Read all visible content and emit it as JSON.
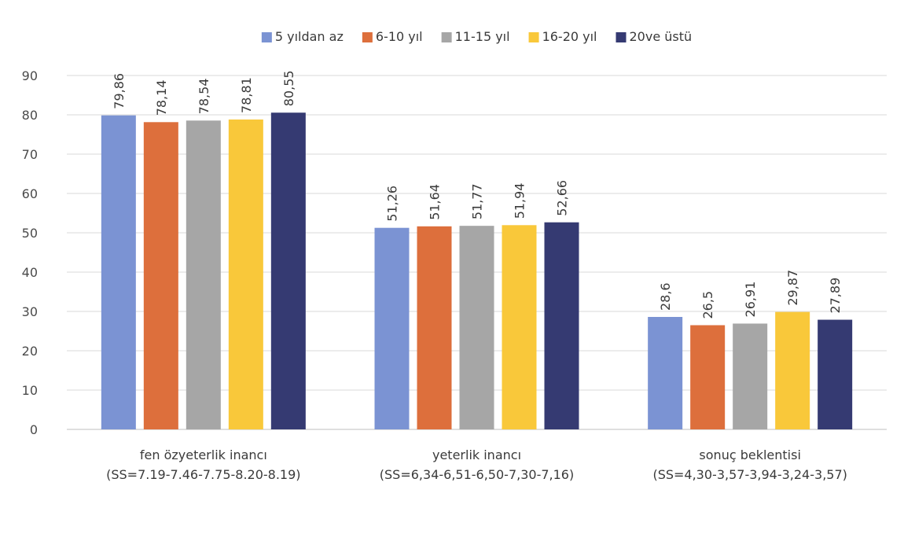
{
  "chart_data": {
    "type": "bar",
    "categories": [
      [
        "fen özyeterlik inancı",
        "(SS=7.19-7.46-7.75-8.20-8.19)"
      ],
      [
        "yeterlik inancı",
        "(SS=6,34-6,51-6,50-7,30-7,16)"
      ],
      [
        "sonuç beklentisi",
        "(SS=4,30-3,57-3,94-3,24-3,57)"
      ]
    ],
    "series": [
      {
        "name": "5 yıldan az",
        "color": "#7b93d3",
        "values": [
          79.86,
          51.26,
          28.6
        ],
        "labels": [
          "79,86",
          "51,26",
          "28,6"
        ]
      },
      {
        "name": "6-10 yıl",
        "color": "#dd6f3c",
        "values": [
          78.14,
          51.64,
          26.5
        ],
        "labels": [
          "78,14",
          "51,64",
          "26,5"
        ]
      },
      {
        "name": "11-15 yıl",
        "color": "#a6a6a6",
        "values": [
          78.54,
          51.77,
          26.91
        ],
        "labels": [
          "78,54",
          "51,77",
          "26,91"
        ]
      },
      {
        "name": "16-20 yıl",
        "color": "#f9c83a",
        "values": [
          78.81,
          51.94,
          29.87
        ],
        "labels": [
          "78,81",
          "51,94",
          "29,87"
        ]
      },
      {
        "name": "20ve üstü",
        "color": "#353a72",
        "values": [
          80.55,
          52.66,
          27.89
        ],
        "labels": [
          "80,55",
          "52,66",
          "27,89"
        ]
      }
    ],
    "ylim": [
      0,
      90
    ],
    "yticks": [
      0,
      10,
      20,
      30,
      40,
      50,
      60,
      70,
      80,
      90
    ],
    "grid": true,
    "legend_position": "top"
  }
}
